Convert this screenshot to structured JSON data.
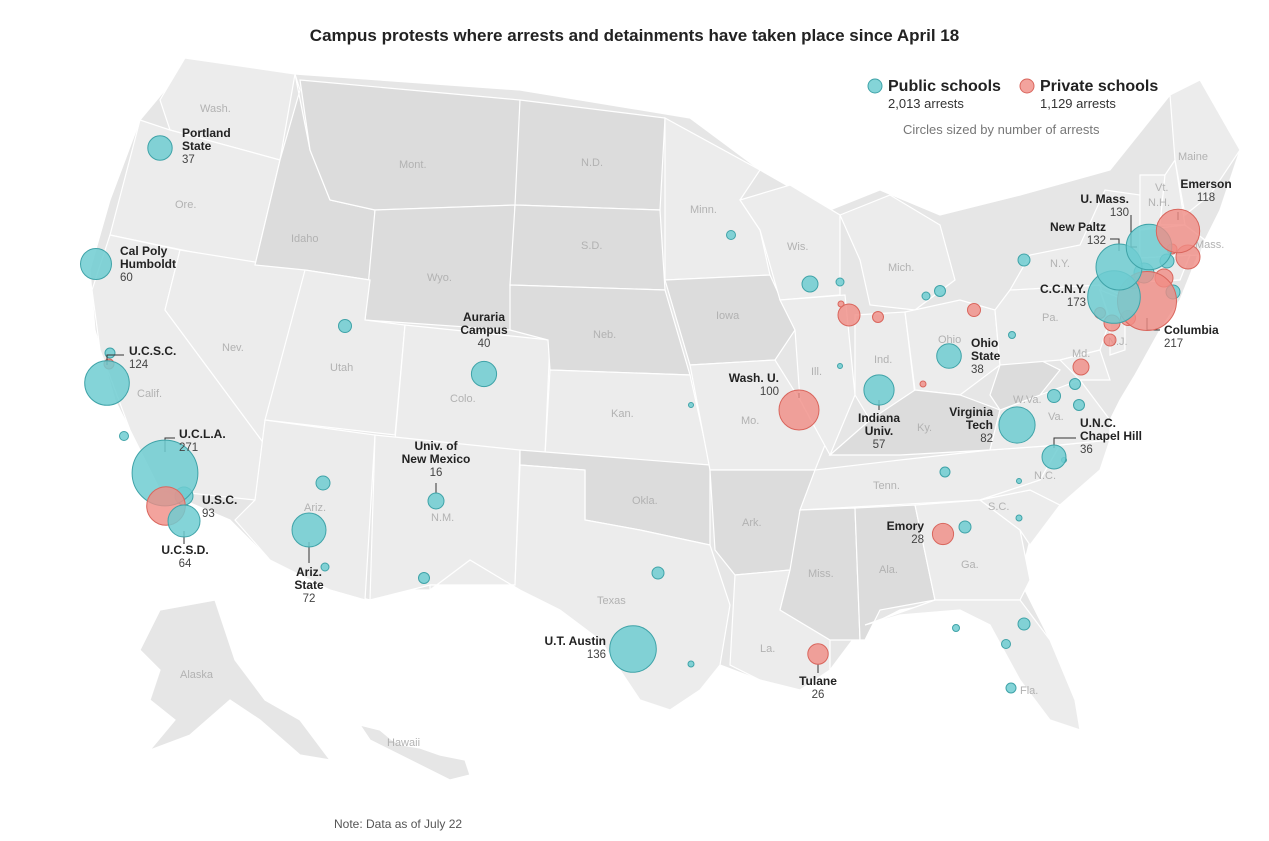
{
  "title": "Campus protests where arrests and detainments have taken place since April 18",
  "note": "Note: Data as of July 22",
  "legend": {
    "public": {
      "label": "Public schools",
      "arrests": "2,013 arrests",
      "color": "#6fcdd1"
    },
    "private": {
      "label": "Private schools",
      "arrests": "1,129 arrests",
      "color": "#f08c84"
    },
    "size_note": "Circles sized by number of arrests"
  },
  "states": [
    "Wash.",
    "Ore.",
    "Calif.",
    "Nev.",
    "Idaho",
    "Mont.",
    "Wyo.",
    "Utah",
    "Colo.",
    "Ariz.",
    "N.M.",
    "N.D.",
    "S.D.",
    "Neb.",
    "Kan.",
    "Okla.",
    "Texas",
    "Minn.",
    "Iowa",
    "Mo.",
    "Ark.",
    "La.",
    "Wis.",
    "Ill.",
    "Mich.",
    "Ind.",
    "Ohio",
    "Ky.",
    "Tenn.",
    "Miss.",
    "Ala.",
    "Ga.",
    "Fla.",
    "S.C.",
    "N.C.",
    "Va.",
    "W.Va.",
    "Pa.",
    "N.Y.",
    "Vt.",
    "N.H.",
    "Maine",
    "Mass.",
    "N.J.",
    "Md.",
    "Alaska",
    "Hawaii"
  ],
  "schools": [
    {
      "name": "Portland State",
      "arrests": 37,
      "type": "public"
    },
    {
      "name": "Cal Poly Humboldt",
      "arrests": 60,
      "type": "public"
    },
    {
      "name": "U.C.S.C.",
      "arrests": 124,
      "type": "public"
    },
    {
      "name": "U.C.L.A.",
      "arrests": 271,
      "type": "public"
    },
    {
      "name": "U.S.C.",
      "arrests": 93,
      "type": "private"
    },
    {
      "name": "U.C.S.D.",
      "arrests": 64,
      "type": "public"
    },
    {
      "name": "Ariz. State",
      "arrests": 72,
      "type": "public"
    },
    {
      "name": "Univ. of New Mexico",
      "arrests": 16,
      "type": "public"
    },
    {
      "name": "Auraria Campus",
      "arrests": 40,
      "type": "public"
    },
    {
      "name": "U.T. Austin",
      "arrests": 136,
      "type": "public"
    },
    {
      "name": "Wash. U.",
      "arrests": 100,
      "type": "private"
    },
    {
      "name": "Tulane",
      "arrests": 26,
      "type": "private"
    },
    {
      "name": "Indiana Univ.",
      "arrests": 57,
      "type": "public"
    },
    {
      "name": "Ohio State",
      "arrests": 38,
      "type": "public"
    },
    {
      "name": "Virginia Tech",
      "arrests": 82,
      "type": "public"
    },
    {
      "name": "U.N.C. Chapel Hill",
      "arrests": 36,
      "type": "public"
    },
    {
      "name": "Emory",
      "arrests": 28,
      "type": "private"
    },
    {
      "name": "Columbia",
      "arrests": 217,
      "type": "private"
    },
    {
      "name": "C.C.N.Y.",
      "arrests": 173,
      "type": "public"
    },
    {
      "name": "New Paltz",
      "arrests": 132,
      "type": "public"
    },
    {
      "name": "U. Mass.",
      "arrests": 130,
      "type": "public"
    },
    {
      "name": "Emerson",
      "arrests": 118,
      "type": "private"
    }
  ]
}
